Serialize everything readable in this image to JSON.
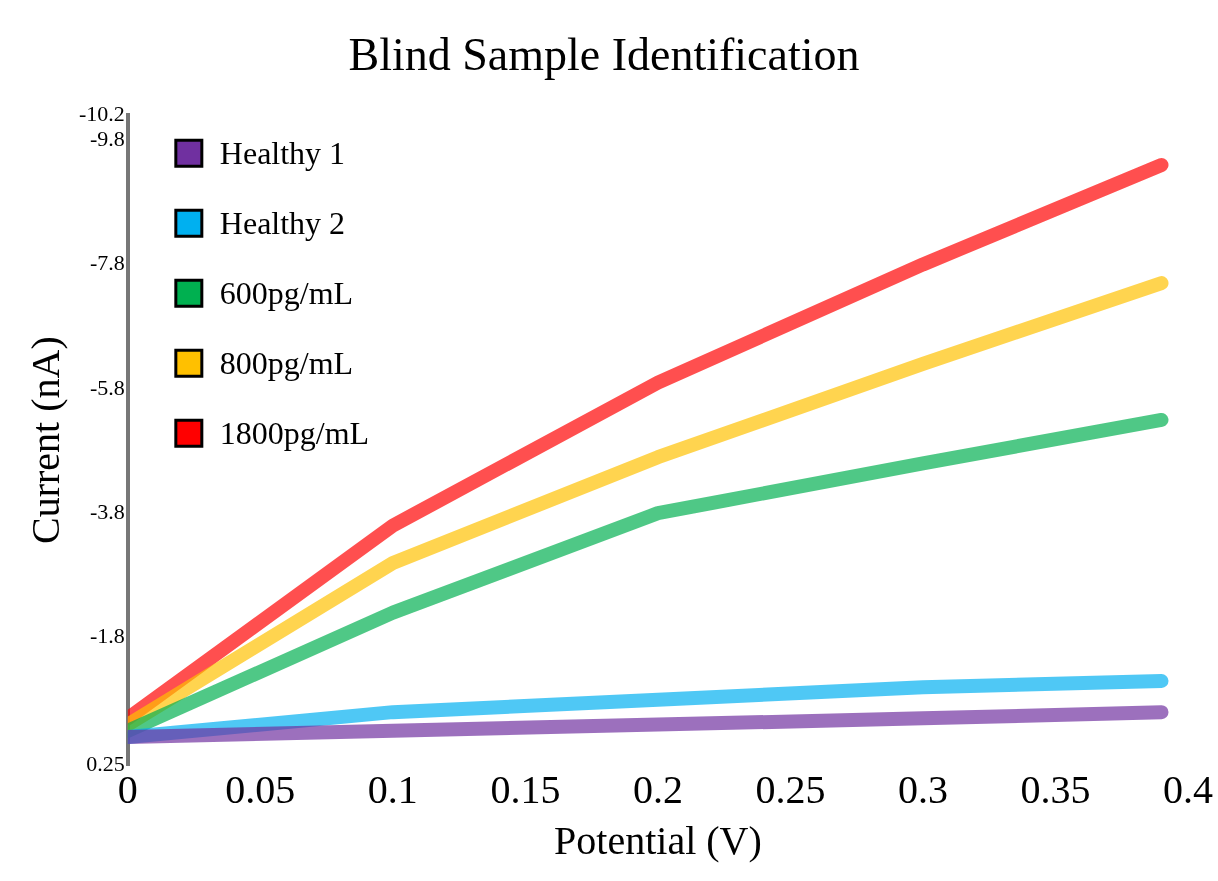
{
  "chart_data": {
    "type": "line",
    "title": "Blind Sample Identification",
    "xlabel": "Potential (V)",
    "ylabel": "Current (nA)",
    "x": [
      0,
      0.1,
      0.2,
      0.3,
      0.39
    ],
    "series": [
      {
        "name": "Healthy 1",
        "color": "#7030a0",
        "values": [
          -0.2,
          -0.3,
          -0.4,
          -0.5,
          -0.6
        ]
      },
      {
        "name": "Healthy 2",
        "color": "#00b0f0",
        "values": [
          -0.2,
          -0.6,
          -0.8,
          -1.0,
          -1.1
        ]
      },
      {
        "name": "600pg/mL",
        "color": "#00b050",
        "values": [
          -0.3,
          -2.2,
          -3.8,
          -4.6,
          -5.3
        ]
      },
      {
        "name": "800pg/mL",
        "color": "#ffc000",
        "values": [
          -0.4,
          -3.0,
          -4.7,
          -6.2,
          -7.5
        ]
      },
      {
        "name": "1800pg/mL",
        "color": "#ff0000",
        "values": [
          -0.5,
          -3.6,
          -5.9,
          -7.8,
          -9.4
        ]
      }
    ],
    "xlim": [
      0,
      0.4
    ],
    "xticks": [
      0,
      0.05,
      0.1,
      0.15,
      0.2,
      0.25,
      0.3,
      0.35,
      0.4
    ],
    "ylim": [
      0.25,
      -10.2
    ],
    "yticks": [
      0.25,
      -1.8,
      -3.8,
      -5.8,
      -7.8,
      -9.8,
      -10.2
    ],
    "legend": "top left",
    "line_style": "solid",
    "grid": false
  }
}
